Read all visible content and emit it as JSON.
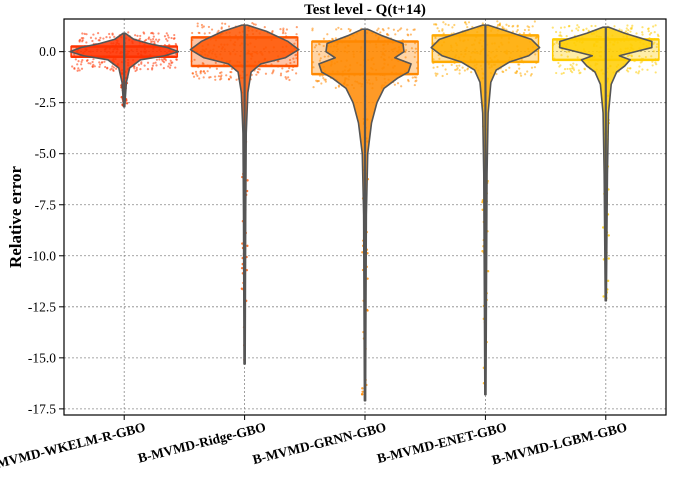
{
  "chart_data": {
    "type": "violin",
    "title": "Test level - Q(t+14)",
    "xlabel": "",
    "ylabel": "Relative error",
    "ylim": [
      -17.8,
      1.6
    ],
    "yticks": [
      0.0,
      -2.5,
      -5.0,
      -7.5,
      -10.0,
      -12.5,
      -15.0,
      -17.5
    ],
    "ytick_labels": [
      "0.0",
      "-2.5",
      "-5.0",
      "-7.5",
      "-10.0",
      "-12.5",
      "-15.0",
      "-17.5"
    ],
    "grid": true,
    "categories": [
      "B-MVMD-WKELM-R-GBO",
      "B-MVMD-Ridge-GBO",
      "B-MVMD-GRNN-GBO",
      "B-MVMD-ENET-GBO",
      "B-MVMD-LGBM-GBO"
    ],
    "series": [
      {
        "color": "#ff3300",
        "min": -2.7,
        "max": 0.9,
        "q1": -0.25,
        "q3": 0.25,
        "profile": [
          [
            0.9,
            0.02
          ],
          [
            0.6,
            0.18
          ],
          [
            0.4,
            0.45
          ],
          [
            0.2,
            0.8
          ],
          [
            0.0,
            1.0
          ],
          [
            -0.2,
            0.75
          ],
          [
            -0.4,
            0.3
          ],
          [
            -0.8,
            0.1
          ],
          [
            -1.5,
            0.04
          ],
          [
            -2.7,
            0.01
          ]
        ]
      },
      {
        "color": "#ff5500",
        "min": -15.3,
        "max": 1.3,
        "q1": -0.7,
        "q3": 0.7,
        "profile": [
          [
            1.3,
            0.05
          ],
          [
            1.0,
            0.4
          ],
          [
            0.5,
            0.8
          ],
          [
            0.1,
            1.0
          ],
          [
            -0.3,
            0.75
          ],
          [
            -0.6,
            0.3
          ],
          [
            -1.0,
            0.12
          ],
          [
            -2.0,
            0.06
          ],
          [
            -4.0,
            0.03
          ],
          [
            -8.0,
            0.02
          ],
          [
            -15.3,
            0.01
          ]
        ]
      },
      {
        "color": "#ff8800",
        "min": -17.1,
        "max": 1.1,
        "q1": -1.1,
        "q3": 0.5,
        "profile": [
          [
            1.1,
            0.05
          ],
          [
            0.8,
            0.3
          ],
          [
            0.4,
            0.7
          ],
          [
            0.0,
            0.72
          ],
          [
            -0.3,
            0.55
          ],
          [
            -0.6,
            0.85
          ],
          [
            -1.0,
            0.8
          ],
          [
            -1.3,
            0.6
          ],
          [
            -1.8,
            0.35
          ],
          [
            -2.5,
            0.22
          ],
          [
            -3.5,
            0.12
          ],
          [
            -5.0,
            0.05
          ],
          [
            -8.0,
            0.025
          ],
          [
            -17.1,
            0.01
          ]
        ]
      },
      {
        "color": "#ffaa00",
        "min": -16.8,
        "max": 1.3,
        "q1": -0.5,
        "q3": 0.8,
        "profile": [
          [
            1.3,
            0.05
          ],
          [
            1.0,
            0.4
          ],
          [
            0.6,
            0.85
          ],
          [
            0.2,
            1.0
          ],
          [
            -0.2,
            0.8
          ],
          [
            -0.5,
            0.45
          ],
          [
            -0.9,
            0.2
          ],
          [
            -1.5,
            0.1
          ],
          [
            -3.0,
            0.05
          ],
          [
            -6.0,
            0.03
          ],
          [
            -16.8,
            0.01
          ]
        ]
      },
      {
        "color": "#ffcc00",
        "min": -12.2,
        "max": 1.2,
        "q1": -0.4,
        "q3": 0.6,
        "profile": [
          [
            1.2,
            0.05
          ],
          [
            0.9,
            0.35
          ],
          [
            0.5,
            0.85
          ],
          [
            0.2,
            0.85
          ],
          [
            0.0,
            0.55
          ],
          [
            -0.2,
            0.25
          ],
          [
            -0.4,
            0.45
          ],
          [
            -0.7,
            0.35
          ],
          [
            -1.0,
            0.2
          ],
          [
            -1.6,
            0.1
          ],
          [
            -3.0,
            0.05
          ],
          [
            -6.0,
            0.03
          ],
          [
            -12.2,
            0.01
          ]
        ]
      }
    ]
  }
}
